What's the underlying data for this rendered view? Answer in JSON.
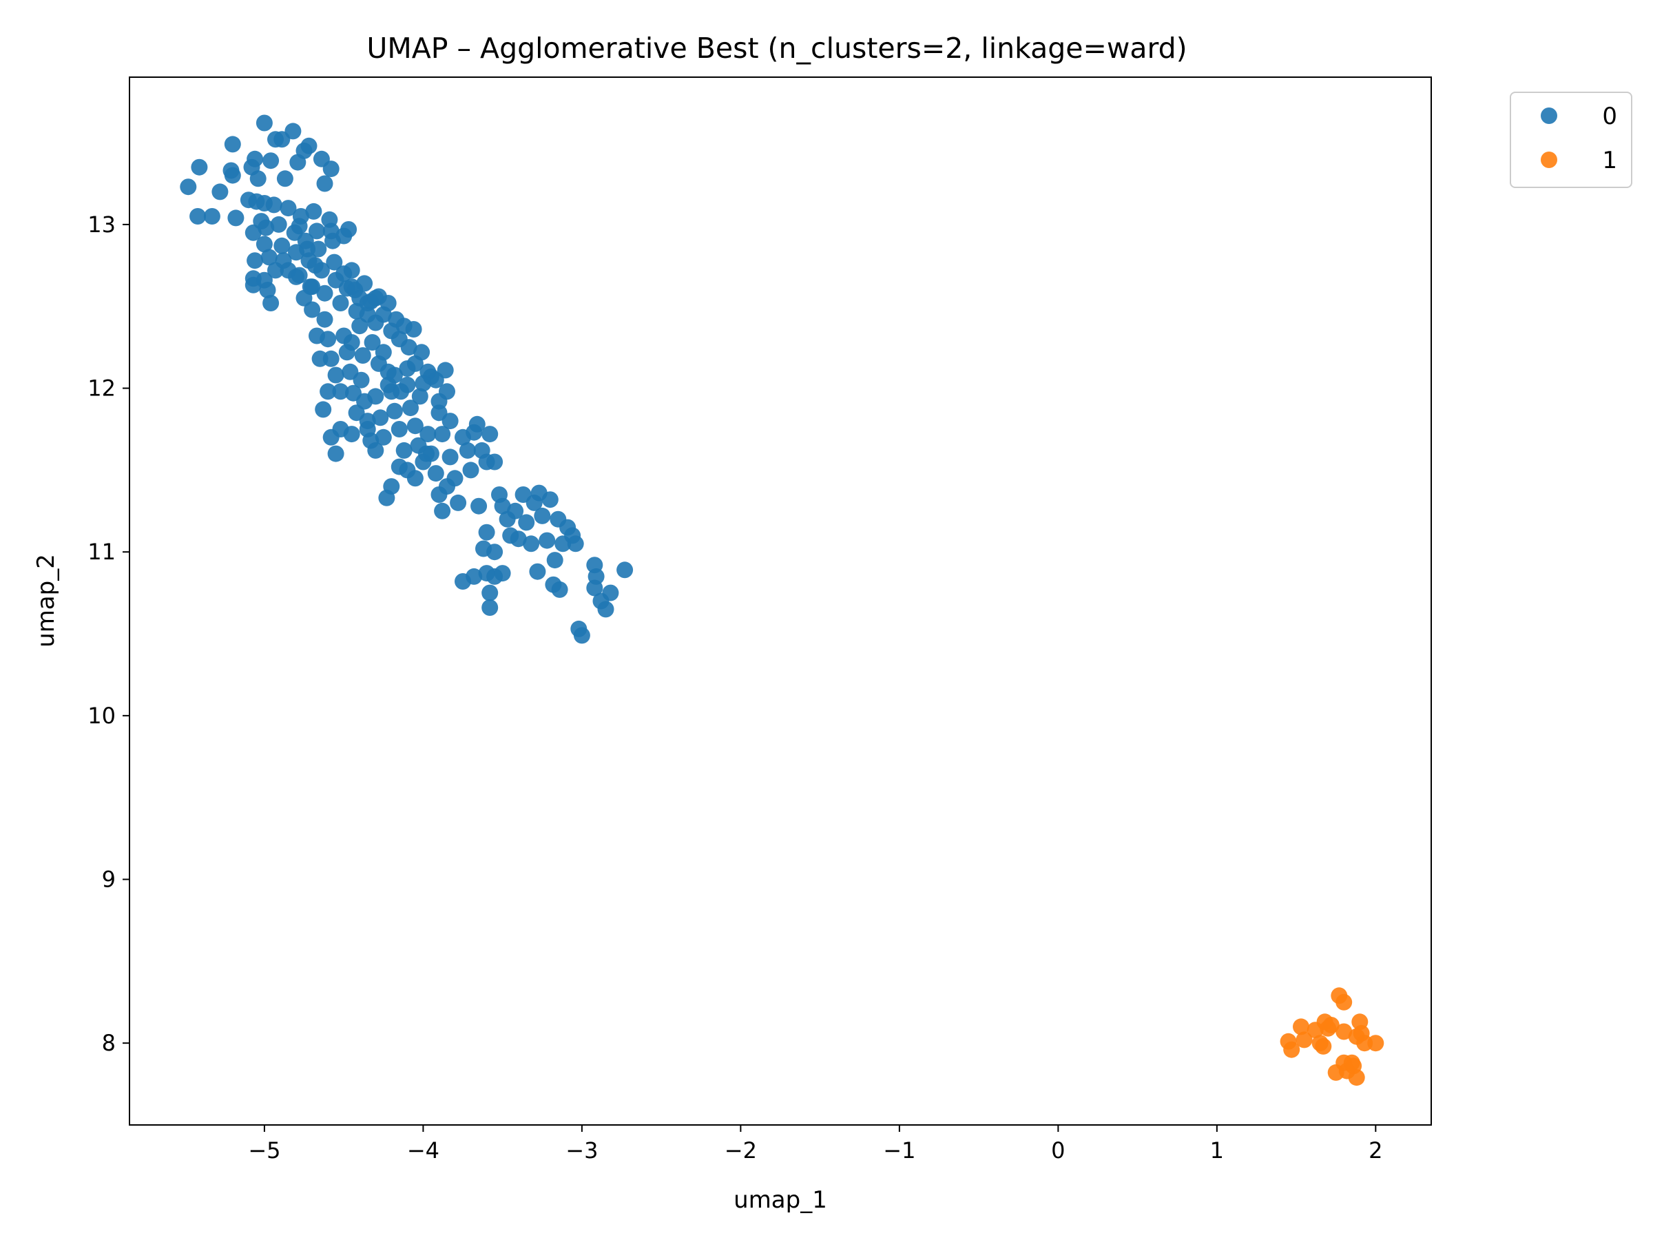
{
  "chart_data": {
    "type": "scatter",
    "title": "UMAP – Agglomerative Best (n_clusters=2, linkage=ward)",
    "xlabel": "umap_1",
    "ylabel": "umap_2",
    "xlim": [
      -5.85,
      2.35
    ],
    "ylim": [
      7.5,
      13.9
    ],
    "xticks": [
      -5,
      -4,
      -3,
      -2,
      -1,
      0,
      1,
      2
    ],
    "xtick_labels": [
      "−5",
      "−4",
      "−3",
      "−2",
      "−1",
      "0",
      "1",
      "2"
    ],
    "yticks": [
      8,
      9,
      10,
      11,
      12,
      13
    ],
    "ytick_labels": [
      "8",
      "9",
      "10",
      "11",
      "12",
      "13"
    ],
    "grid": false,
    "legend_position": "outside-top-right",
    "series": [
      {
        "name": "0",
        "color": "#1f77b4",
        "points": [
          [
            -5.48,
            13.23
          ],
          [
            -5.41,
            13.35
          ],
          [
            -5.42,
            13.05
          ],
          [
            -5.33,
            13.05
          ],
          [
            -5.28,
            13.2
          ],
          [
            -5.2,
            13.49
          ],
          [
            -5.21,
            13.33
          ],
          [
            -5.2,
            13.3
          ],
          [
            -5.18,
            13.04
          ],
          [
            -5.08,
            13.35
          ],
          [
            -5.06,
            13.4
          ],
          [
            -5.1,
            13.15
          ],
          [
            -5.04,
            13.28
          ],
          [
            -5.0,
            13.62
          ],
          [
            -4.96,
            13.39
          ],
          [
            -4.93,
            13.52
          ],
          [
            -4.89,
            13.52
          ],
          [
            -4.87,
            13.28
          ],
          [
            -4.82,
            13.57
          ],
          [
            -4.79,
            13.38
          ],
          [
            -4.75,
            13.45
          ],
          [
            -4.72,
            13.48
          ],
          [
            -4.64,
            13.4
          ],
          [
            -4.58,
            13.34
          ],
          [
            -4.62,
            13.25
          ],
          [
            -5.05,
            13.14
          ],
          [
            -5.0,
            13.13
          ],
          [
            -4.94,
            13.12
          ],
          [
            -5.07,
            12.95
          ],
          [
            -5.02,
            13.02
          ],
          [
            -4.99,
            12.98
          ],
          [
            -5.06,
            12.78
          ],
          [
            -5.0,
            12.88
          ],
          [
            -4.97,
            12.8
          ],
          [
            -5.07,
            12.67
          ],
          [
            -5.07,
            12.63
          ],
          [
            -5.0,
            12.66
          ],
          [
            -4.96,
            12.52
          ],
          [
            -4.91,
            13.0
          ],
          [
            -4.89,
            12.87
          ],
          [
            -4.85,
            12.72
          ],
          [
            -4.85,
            13.1
          ],
          [
            -4.81,
            12.95
          ],
          [
            -4.8,
            12.83
          ],
          [
            -4.78,
            12.69
          ],
          [
            -4.77,
            13.05
          ],
          [
            -4.74,
            12.9
          ],
          [
            -4.72,
            12.78
          ],
          [
            -4.71,
            12.62
          ],
          [
            -4.69,
            13.08
          ],
          [
            -4.67,
            12.96
          ],
          [
            -4.66,
            12.85
          ],
          [
            -4.64,
            12.72
          ],
          [
            -4.62,
            12.58
          ],
          [
            -4.59,
            13.03
          ],
          [
            -4.57,
            12.9
          ],
          [
            -4.56,
            12.77
          ],
          [
            -4.55,
            12.66
          ],
          [
            -4.52,
            12.52
          ],
          [
            -4.5,
            12.93
          ],
          [
            -4.48,
            12.61
          ],
          [
            -4.47,
            12.97
          ],
          [
            -4.45,
            12.72
          ],
          [
            -4.43,
            12.6
          ],
          [
            -4.42,
            12.47
          ],
          [
            -4.4,
            12.55
          ],
          [
            -4.37,
            12.64
          ],
          [
            -4.35,
            12.45
          ],
          [
            -4.33,
            12.53
          ],
          [
            -4.3,
            12.4
          ],
          [
            -4.28,
            12.56
          ],
          [
            -4.25,
            12.45
          ],
          [
            -4.22,
            12.52
          ],
          [
            -4.2,
            12.35
          ],
          [
            -4.17,
            12.42
          ],
          [
            -4.15,
            12.3
          ],
          [
            -4.12,
            12.38
          ],
          [
            -4.09,
            12.25
          ],
          [
            -4.06,
            12.36
          ],
          [
            -4.05,
            12.15
          ],
          [
            -4.01,
            12.22
          ],
          [
            -3.97,
            12.1
          ],
          [
            -3.95,
            12.07
          ],
          [
            -3.92,
            12.05
          ],
          [
            -3.86,
            12.11
          ],
          [
            -3.9,
            11.85
          ],
          [
            -3.83,
            11.8
          ],
          [
            -4.62,
            12.42
          ],
          [
            -4.6,
            12.3
          ],
          [
            -4.58,
            12.18
          ],
          [
            -4.55,
            12.08
          ],
          [
            -4.52,
            11.98
          ],
          [
            -4.48,
            12.22
          ],
          [
            -4.46,
            12.1
          ],
          [
            -4.44,
            11.97
          ],
          [
            -4.42,
            11.85
          ],
          [
            -4.39,
            12.05
          ],
          [
            -4.37,
            11.92
          ],
          [
            -4.35,
            11.8
          ],
          [
            -4.33,
            11.68
          ],
          [
            -4.3,
            11.95
          ],
          [
            -4.27,
            11.82
          ],
          [
            -4.25,
            11.7
          ],
          [
            -4.22,
            12.1
          ],
          [
            -4.2,
            11.98
          ],
          [
            -4.18,
            11.86
          ],
          [
            -4.15,
            11.75
          ],
          [
            -4.12,
            11.62
          ],
          [
            -4.1,
            11.5
          ],
          [
            -4.08,
            11.88
          ],
          [
            -4.05,
            11.77
          ],
          [
            -4.03,
            11.65
          ],
          [
            -4.0,
            11.55
          ],
          [
            -3.97,
            11.72
          ],
          [
            -3.95,
            11.6
          ],
          [
            -3.92,
            11.48
          ],
          [
            -3.9,
            11.35
          ],
          [
            -3.88,
            11.25
          ],
          [
            -3.85,
            11.4
          ],
          [
            -3.83,
            11.58
          ],
          [
            -3.8,
            11.45
          ],
          [
            -3.78,
            11.3
          ],
          [
            -3.75,
            11.7
          ],
          [
            -3.72,
            11.62
          ],
          [
            -3.7,
            11.5
          ],
          [
            -3.68,
            11.73
          ],
          [
            -3.66,
            11.78
          ],
          [
            -3.63,
            11.62
          ],
          [
            -3.6,
            11.55
          ],
          [
            -3.58,
            11.72
          ],
          [
            -3.55,
            11.55
          ],
          [
            -3.52,
            11.35
          ],
          [
            -3.5,
            11.28
          ],
          [
            -3.47,
            11.2
          ],
          [
            -3.45,
            11.1
          ],
          [
            -3.42,
            11.25
          ],
          [
            -3.4,
            11.08
          ],
          [
            -3.37,
            11.35
          ],
          [
            -3.35,
            11.18
          ],
          [
            -3.32,
            11.05
          ],
          [
            -3.3,
            11.3
          ],
          [
            -3.27,
            11.36
          ],
          [
            -3.25,
            11.22
          ],
          [
            -3.22,
            11.07
          ],
          [
            -3.2,
            11.32
          ],
          [
            -3.17,
            10.95
          ],
          [
            -3.15,
            11.2
          ],
          [
            -3.12,
            11.05
          ],
          [
            -3.09,
            11.15
          ],
          [
            -3.06,
            11.1
          ],
          [
            -3.04,
            11.05
          ],
          [
            -3.02,
            10.53
          ],
          [
            -3.0,
            10.49
          ],
          [
            -2.92,
            10.92
          ],
          [
            -2.91,
            10.85
          ],
          [
            -2.92,
            10.78
          ],
          [
            -2.88,
            10.7
          ],
          [
            -2.85,
            10.65
          ],
          [
            -2.82,
            10.75
          ],
          [
            -2.73,
            10.89
          ],
          [
            -3.28,
            10.88
          ],
          [
            -3.18,
            10.8
          ],
          [
            -3.14,
            10.77
          ],
          [
            -3.5,
            10.87
          ],
          [
            -3.55,
            10.85
          ],
          [
            -3.6,
            10.87
          ],
          [
            -3.58,
            10.75
          ],
          [
            -3.58,
            10.66
          ],
          [
            -3.68,
            10.85
          ],
          [
            -3.75,
            10.82
          ],
          [
            -3.62,
            11.02
          ],
          [
            -3.6,
            11.12
          ],
          [
            -3.65,
            11.28
          ],
          [
            -3.55,
            11.0
          ],
          [
            -3.98,
            11.6
          ],
          [
            -4.05,
            11.45
          ],
          [
            -4.15,
            11.52
          ],
          [
            -4.2,
            11.4
          ],
          [
            -4.23,
            11.33
          ],
          [
            -4.3,
            11.62
          ],
          [
            -4.35,
            11.75
          ],
          [
            -4.45,
            11.72
          ],
          [
            -4.52,
            11.75
          ],
          [
            -4.58,
            11.7
          ],
          [
            -4.55,
            11.6
          ],
          [
            -4.63,
            11.87
          ],
          [
            -4.6,
            11.98
          ],
          [
            -4.67,
            12.32
          ],
          [
            -4.7,
            12.48
          ],
          [
            -4.65,
            12.18
          ],
          [
            -4.75,
            12.55
          ],
          [
            -4.8,
            12.68
          ],
          [
            -4.88,
            12.78
          ],
          [
            -4.93,
            12.72
          ],
          [
            -4.98,
            12.6
          ],
          [
            -4.78,
            12.99
          ],
          [
            -4.73,
            12.85
          ],
          [
            -4.68,
            12.75
          ],
          [
            -4.7,
            12.62
          ],
          [
            -4.5,
            12.32
          ],
          [
            -4.45,
            12.28
          ],
          [
            -4.4,
            12.38
          ],
          [
            -4.38,
            12.2
          ],
          [
            -4.32,
            12.28
          ],
          [
            -4.28,
            12.15
          ],
          [
            -4.25,
            12.22
          ],
          [
            -4.22,
            12.02
          ],
          [
            -4.18,
            12.08
          ],
          [
            -4.14,
            11.98
          ],
          [
            -4.1,
            12.12
          ],
          [
            -4.1,
            12.02
          ],
          [
            -4.02,
            11.95
          ],
          [
            -4.0,
            12.03
          ],
          [
            -3.88,
            11.72
          ],
          [
            -3.85,
            11.98
          ],
          [
            -3.9,
            11.92
          ],
          [
            -4.58,
            12.96
          ],
          [
            -4.45,
            12.62
          ],
          [
            -4.5,
            12.7
          ],
          [
            -4.35,
            12.52
          ],
          [
            -4.3,
            12.55
          ]
        ]
      },
      {
        "name": "1",
        "color": "#ff7f0e",
        "points": [
          [
            1.45,
            8.01
          ],
          [
            1.47,
            7.96
          ],
          [
            1.53,
            8.1
          ],
          [
            1.55,
            8.02
          ],
          [
            1.62,
            8.08
          ],
          [
            1.65,
            8.0
          ],
          [
            1.67,
            7.98
          ],
          [
            1.68,
            8.13
          ],
          [
            1.7,
            8.09
          ],
          [
            1.72,
            8.11
          ],
          [
            1.75,
            7.82
          ],
          [
            1.77,
            8.29
          ],
          [
            1.8,
            8.25
          ],
          [
            1.8,
            7.88
          ],
          [
            1.8,
            8.07
          ],
          [
            1.82,
            7.83
          ],
          [
            1.85,
            7.88
          ],
          [
            1.86,
            7.86
          ],
          [
            1.88,
            8.04
          ],
          [
            1.88,
            7.79
          ],
          [
            1.9,
            8.13
          ],
          [
            1.91,
            8.06
          ],
          [
            1.93,
            8.0
          ],
          [
            2.0,
            8.0
          ]
        ]
      }
    ]
  }
}
